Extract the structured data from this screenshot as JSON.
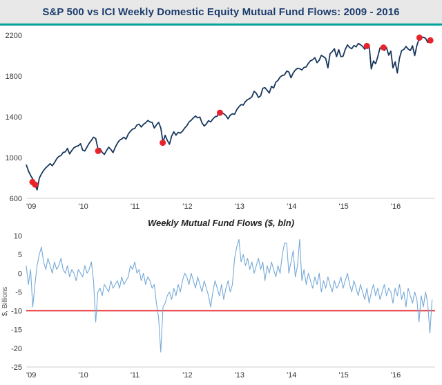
{
  "header": {
    "title": "S&P 500 vs ICI Weekly Domestic Equity Mutual Fund Flows: 2009 - 2016",
    "accent_color": "#00a39a"
  },
  "chart_data": [
    {
      "type": "line",
      "title": "S&P 500",
      "x_start": 2009.0,
      "x_step_years": 0.0416667,
      "xlim": [
        2009,
        2016.85
      ],
      "ylim": [
        600,
        2200
      ],
      "yticks": [
        600,
        1000,
        1400,
        1800,
        2200
      ],
      "xticks": [
        {
          "v": 2009,
          "label": "'09"
        },
        {
          "v": 2010,
          "label": "'10"
        },
        {
          "v": 2011,
          "label": "'11"
        },
        {
          "v": 2012,
          "label": "'12"
        },
        {
          "v": 2013,
          "label": "'13"
        },
        {
          "v": 2014,
          "label": "'14"
        },
        {
          "v": 2015,
          "label": "'15"
        },
        {
          "v": 2016,
          "label": "'16"
        }
      ],
      "line_color": "#16365c",
      "grid": false,
      "values": [
        931,
        870,
        826,
        790,
        735,
        683,
        798,
        840,
        873,
        900,
        919,
        940,
        919,
        950,
        987,
        1010,
        1021,
        1050,
        1057,
        1090,
        1036,
        1070,
        1096,
        1110,
        1115,
        1136,
        1074,
        1065,
        1104,
        1140,
        1169,
        1200,
        1187,
        1090,
        1089,
        1050,
        1031,
        1070,
        1102,
        1080,
        1049,
        1100,
        1141,
        1170,
        1183,
        1200,
        1181,
        1230,
        1258,
        1280,
        1286,
        1320,
        1327,
        1300,
        1326,
        1340,
        1364,
        1350,
        1345,
        1290,
        1321,
        1345,
        1292,
        1150,
        1219,
        1170,
        1131,
        1210,
        1253,
        1220,
        1247,
        1240,
        1258,
        1290,
        1312,
        1350,
        1366,
        1390,
        1408,
        1390,
        1398,
        1340,
        1310,
        1330,
        1362,
        1350,
        1379,
        1400,
        1407,
        1460,
        1441,
        1430,
        1412,
        1380,
        1416,
        1430,
        1426,
        1470,
        1498,
        1520,
        1515,
        1550,
        1569,
        1580,
        1598,
        1650,
        1631,
        1590,
        1606,
        1680,
        1686,
        1660,
        1633,
        1700,
        1682,
        1740,
        1757,
        1790,
        1806,
        1810,
        1848,
        1840,
        1783,
        1830,
        1859,
        1875,
        1872,
        1860,
        1884,
        1890,
        1924,
        1950,
        1960,
        1980,
        1931,
        1955,
        2003,
        1990,
        1972,
        1880,
        2018,
        2040,
        2068,
        1990,
        2059,
        1990,
        1995,
        2060,
        2105,
        2080,
        2068,
        2100,
        2086,
        2120,
        2107,
        2090,
        2063,
        2120,
        2104,
        1870,
        1948,
        1920,
        1990,
        2075,
        2080,
        2050,
        2080,
        2005,
        2044,
        1880,
        1940,
        1830,
        1978,
        2050,
        2060,
        2090,
        2065,
        2050,
        2097,
        2000,
        2099,
        2160,
        2174,
        2180,
        2171,
        2130,
        2168,
        2140
      ],
      "markers": {
        "color": "#e8232a",
        "meaning": "weeks with heavy mutual fund outflows",
        "points": [
          [
            2009.12,
            760
          ],
          [
            2009.17,
            735
          ],
          [
            2010.38,
            1065
          ],
          [
            2011.62,
            1145
          ],
          [
            2012.72,
            1440
          ],
          [
            2015.54,
            2095
          ],
          [
            2015.86,
            2080
          ],
          [
            2016.55,
            2176
          ],
          [
            2016.76,
            2150
          ]
        ]
      }
    },
    {
      "type": "line",
      "title": "Weekly Mutual Fund Flows ($, bln)",
      "ylabel": "$, Billions",
      "x_start": 2009.0,
      "x_step_years": 0.0416667,
      "xlim": [
        2009,
        2016.85
      ],
      "ylim": [
        -25,
        10
      ],
      "yticks": [
        10,
        5,
        0,
        -5,
        -10,
        -15,
        -20,
        -25
      ],
      "xticks": [
        {
          "v": 2009,
          "label": "'09"
        },
        {
          "v": 2010,
          "label": "'10"
        },
        {
          "v": 2011,
          "label": "'11"
        },
        {
          "v": 2012,
          "label": "'12"
        },
        {
          "v": 2013,
          "label": "'13"
        },
        {
          "v": 2014,
          "label": "'14"
        },
        {
          "v": 2015,
          "label": "'15"
        },
        {
          "v": 2016,
          "label": "'16"
        }
      ],
      "line_color": "#74a9d8",
      "grid": false,
      "refline": {
        "y": -10,
        "color": "#e8232a"
      },
      "values": [
        2,
        -3,
        1,
        -9,
        -3,
        2,
        5,
        7,
        3,
        1,
        4,
        2,
        0,
        3,
        1,
        2,
        4,
        1,
        0,
        2,
        -1,
        1,
        0,
        -2,
        1,
        0,
        -1,
        2,
        0,
        1,
        3,
        -2,
        -13,
        -5,
        -4,
        -6,
        -3,
        -4,
        -5,
        -2,
        -4,
        -3,
        -2,
        -4,
        -1,
        -3,
        -2,
        -1,
        2,
        1,
        3,
        0,
        1,
        -2,
        0,
        -3,
        -1,
        -2,
        -4,
        -3,
        -8,
        -12,
        -21,
        -9,
        -8,
        -6,
        -5,
        -7,
        -4,
        -6,
        -3,
        -5,
        -2,
        0,
        -1,
        -3,
        0,
        -2,
        -4,
        -1,
        -3,
        -5,
        -2,
        -4,
        -6,
        -9,
        -5,
        -2,
        -4,
        -6,
        -3,
        -7,
        -4,
        -2,
        -5,
        -3,
        4,
        7,
        9,
        3,
        5,
        2,
        4,
        1,
        3,
        0,
        2,
        4,
        1,
        3,
        -2,
        2,
        0,
        3,
        1,
        -1,
        2,
        0,
        5,
        8,
        8,
        0,
        3,
        6,
        -1,
        2,
        9,
        -2,
        1,
        -3,
        0,
        -2,
        -4,
        -1,
        -3,
        0,
        -5,
        -2,
        -4,
        -1,
        -3,
        -5,
        -2,
        -4,
        -3,
        -1,
        -4,
        -2,
        0,
        -3,
        -5,
        -2,
        -4,
        -6,
        -3,
        -5,
        -7,
        -4,
        -8,
        -5,
        -3,
        -6,
        -4,
        -7,
        -5,
        -3,
        -6,
        -4,
        -5,
        -8,
        -4,
        -6,
        -3,
        -7,
        -5,
        -9,
        -4,
        -6,
        -8,
        -5,
        -7,
        -13,
        -6,
        -9,
        -5,
        -8,
        -16,
        -7
      ]
    }
  ]
}
